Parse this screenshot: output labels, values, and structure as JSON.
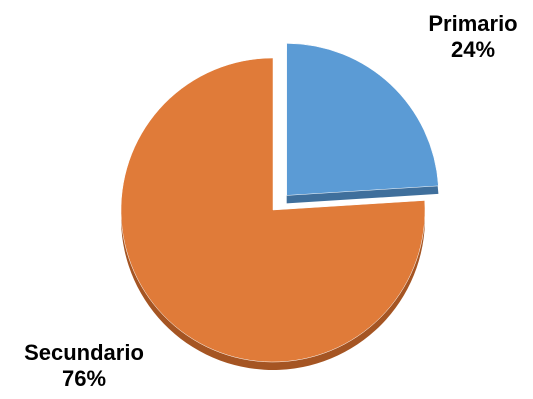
{
  "chart_data": {
    "type": "pie",
    "title": "",
    "slices": [
      {
        "label": "Primario",
        "value": 24,
        "percent_label": "24%",
        "color": "#5b9bd5",
        "shade": "#3f6f9c",
        "exploded": true
      },
      {
        "label": "Secundario",
        "value": 76,
        "percent_label": "76%",
        "color": "#e07b39",
        "shade": "#a55523",
        "exploded": false
      }
    ],
    "style": "3d",
    "legend": "none"
  }
}
